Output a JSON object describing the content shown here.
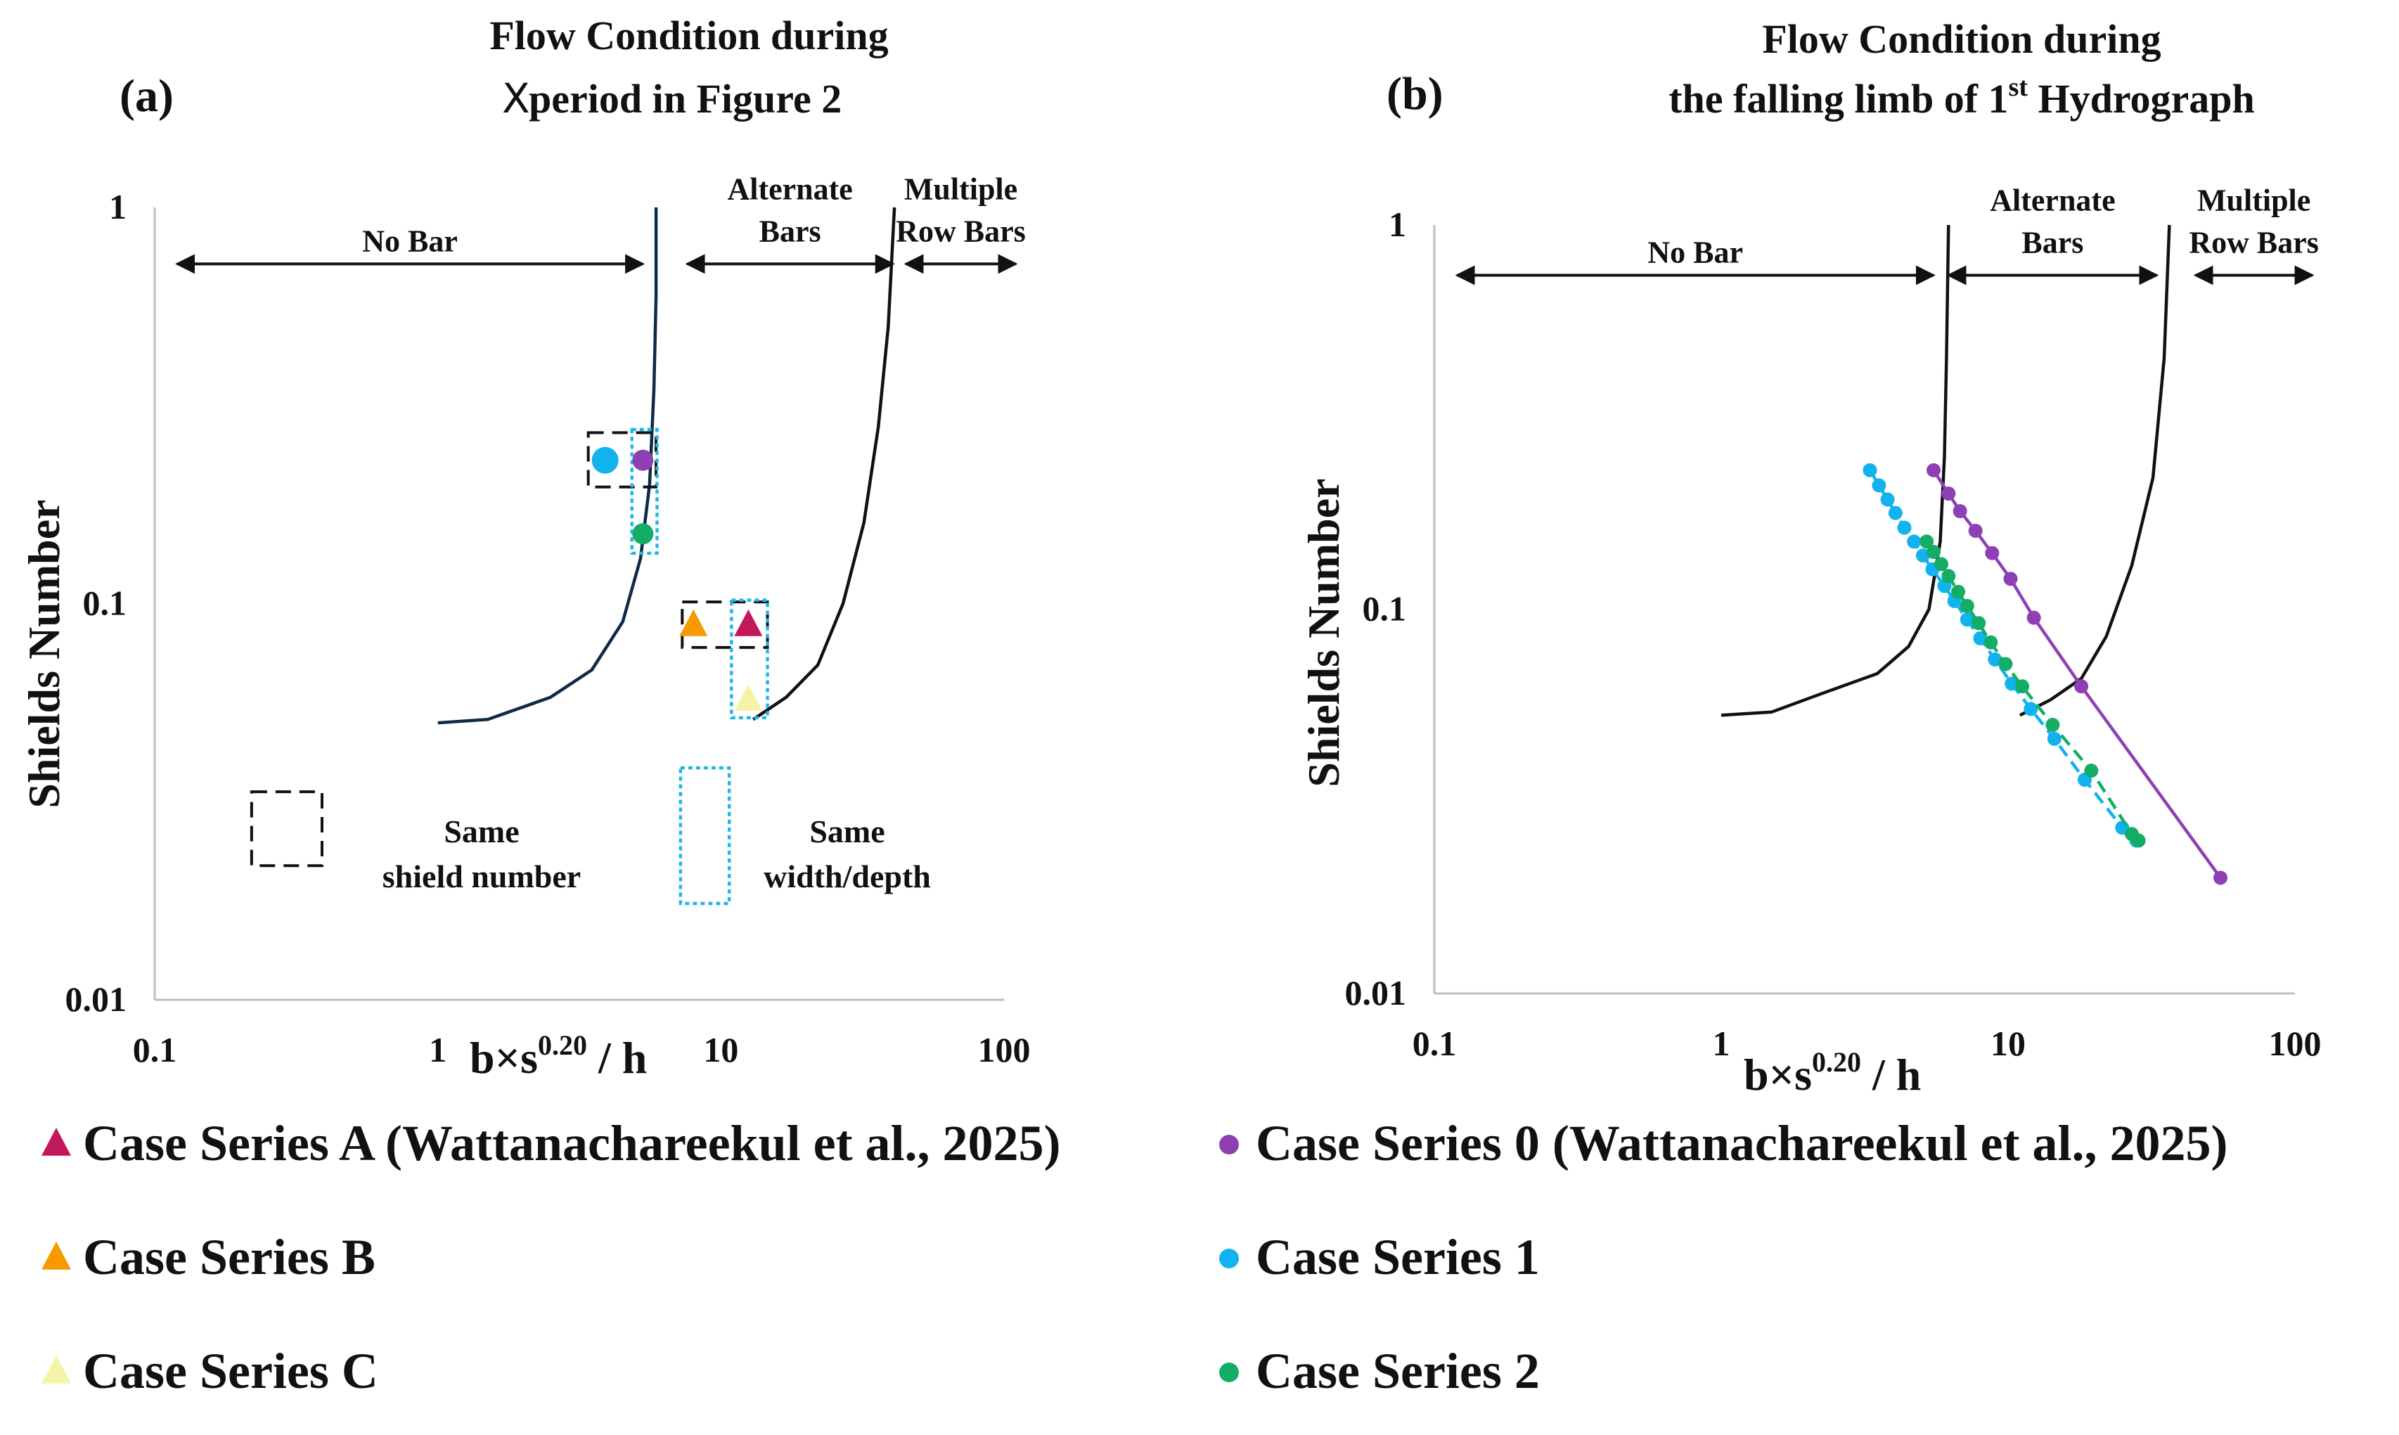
{
  "colors": {
    "series_a": "#c2185b",
    "series_b": "#f59a00",
    "series_c": "#f7f3a6",
    "series_0": "#8e3fb3",
    "series_1": "#12b2ee",
    "series_2": "#14ad66",
    "boundary_a": "#0e2a47",
    "boundary_b": "#111111",
    "axis": "#bfbfbf",
    "box_dashed": "#111111",
    "box_dotted": "#20b8e6"
  },
  "legend": [
    {
      "marker": "triangle",
      "color_key": "series_a",
      "label": "Case Series A (Wattanachareekul et al., 2025)"
    },
    {
      "marker": "triangle",
      "color_key": "series_b",
      "label": "Case Series B"
    },
    {
      "marker": "triangle",
      "color_key": "series_c",
      "label": "Case Series C"
    },
    {
      "marker": "circle",
      "color_key": "series_0",
      "label": "Case Series 0 (Wattanachareekul et al., 2025)"
    },
    {
      "marker": "circle",
      "color_key": "series_1",
      "label": "Case  Series 1"
    },
    {
      "marker": "circle",
      "color_key": "series_2",
      "label": "Case  Series 2"
    }
  ],
  "chart_data": [
    {
      "type": "scatter",
      "panel_label": "(a)",
      "title": "Flow Condition during",
      "title_line2": "period in Figure 2",
      "title_symbol": "X",
      "xlabel": "b×s",
      "xlabel_sup": "0.20",
      "xlabel_tail": " / h",
      "ylabel": "Shields Number",
      "xscale": "log",
      "yscale": "log",
      "xlim": [
        0.1,
        100
      ],
      "ylim": [
        0.01,
        1
      ],
      "xticks": [
        {
          "v": 0.1,
          "t": "0.1"
        },
        {
          "v": 1,
          "t": "1"
        },
        {
          "v": 10,
          "t": "10"
        },
        {
          "v": 100,
          "t": "100"
        }
      ],
      "yticks": [
        {
          "v": 0.01,
          "t": "0.01"
        },
        {
          "v": 0.1,
          "t": "0.1"
        },
        {
          "v": 1,
          "t": "1"
        }
      ],
      "regions": [
        {
          "label": "No Bar",
          "from": 0.12,
          "to": 5.3,
          "y": 0.72
        },
        {
          "label": "Alternate",
          "label2": "Bars",
          "from": 7.6,
          "to": 40.5,
          "y": 0.72
        },
        {
          "label": "Multiple",
          "label2": "Row Bars",
          "from": 45,
          "to": 110,
          "y": 0.72
        }
      ],
      "boundaries": [
        {
          "color_key": "boundary_a",
          "points": [
            [
              1.0,
              0.05
            ],
            [
              1.5,
              0.051
            ],
            [
              2.5,
              0.058
            ],
            [
              3.5,
              0.068
            ],
            [
              4.5,
              0.09
            ],
            [
              5.2,
              0.13
            ],
            [
              5.6,
              0.2
            ],
            [
              5.8,
              0.35
            ],
            [
              5.9,
              0.6
            ],
            [
              5.9,
              1.0
            ]
          ]
        },
        {
          "color_key": "boundary_b",
          "points": [
            [
              13,
              0.051
            ],
            [
              17,
              0.058
            ],
            [
              22,
              0.07
            ],
            [
              27,
              0.1
            ],
            [
              32,
              0.16
            ],
            [
              36,
              0.28
            ],
            [
              39,
              0.5
            ],
            [
              41,
              1.0
            ]
          ]
        }
      ],
      "series": [
        {
          "name": "Case Series A",
          "marker": "triangle",
          "color_key": "series_a",
          "x": [
            12.5
          ],
          "y": [
            0.088
          ]
        },
        {
          "name": "Case Series B",
          "marker": "triangle",
          "color_key": "series_b",
          "x": [
            8.0
          ],
          "y": [
            0.088
          ]
        },
        {
          "name": "Case Series C",
          "marker": "triangle",
          "color_key": "series_c",
          "x": [
            12.5
          ],
          "y": [
            0.057
          ]
        },
        {
          "name": "Case Series 0",
          "marker": "circle",
          "color_key": "series_0",
          "x": [
            5.3
          ],
          "y": [
            0.23
          ]
        },
        {
          "name": "Case Series 1",
          "marker": "circle",
          "color_key": "series_1",
          "x": [
            3.9
          ],
          "y": [
            0.23
          ]
        },
        {
          "name": "Case Series 2",
          "marker": "circle",
          "color_key": "series_2",
          "x": [
            5.3
          ],
          "y": [
            0.15
          ]
        }
      ],
      "boxes": [
        {
          "style": "dashed",
          "x": [
            3.4,
            5.9
          ],
          "y": [
            0.197,
            0.27
          ]
        },
        {
          "style": "dotted",
          "x": [
            4.85,
            5.95
          ],
          "y": [
            0.134,
            0.275
          ]
        },
        {
          "style": "dashed",
          "x": [
            7.3,
            14.6
          ],
          "y": [
            0.0775,
            0.101
          ]
        },
        {
          "style": "dotted",
          "x": [
            10.9,
            14.6
          ],
          "y": [
            0.0515,
            0.102
          ]
        }
      ],
      "box_legend": [
        {
          "style": "dashed",
          "label": "Same",
          "label2": "shield number",
          "x": [
            0.22,
            0.39
          ],
          "y": [
            0.0218,
            0.0335
          ]
        },
        {
          "style": "dotted",
          "label": "Same",
          "label2": "width/depth",
          "x": [
            7.2,
            10.7
          ],
          "y": [
            0.0175,
            0.0385
          ]
        }
      ]
    },
    {
      "type": "line",
      "panel_label": "(b)",
      "title": "Flow Condition during",
      "title_line2": "the falling limb of 1",
      "title_sup": "st",
      "title_tail": " Hydrograph",
      "xlabel": "b×s",
      "xlabel_sup": "0.20",
      "xlabel_tail": " / h",
      "ylabel": "Shields Number",
      "xscale": "log",
      "yscale": "log",
      "xlim": [
        0.1,
        100
      ],
      "ylim": [
        0.01,
        1
      ],
      "xticks": [
        {
          "v": 0.1,
          "t": "0.1"
        },
        {
          "v": 1,
          "t": "1"
        },
        {
          "v": 10,
          "t": "10"
        },
        {
          "v": 100,
          "t": "100"
        }
      ],
      "yticks": [
        {
          "v": 0.01,
          "t": "0.01"
        },
        {
          "v": 0.1,
          "t": "0.1"
        },
        {
          "v": 1,
          "t": "1"
        }
      ],
      "regions": [
        {
          "label": "No Bar",
          "from": 0.12,
          "to": 5.5,
          "y": 0.74
        },
        {
          "label": "Alternate",
          "label2": "Bars",
          "from": 6.2,
          "to": 33,
          "y": 0.74
        },
        {
          "label": "Multiple",
          "label2": "Row Bars",
          "from": 45,
          "to": 115,
          "y": 0.74
        }
      ],
      "boundaries": [
        {
          "color_key": "boundary_b",
          "points": [
            [
              1.0,
              0.053
            ],
            [
              1.5,
              0.054
            ],
            [
              2.2,
              0.06
            ],
            [
              3.5,
              0.068
            ],
            [
              4.5,
              0.08
            ],
            [
              5.3,
              0.1
            ],
            [
              5.8,
              0.15
            ],
            [
              6.0,
              0.25
            ],
            [
              6.1,
              0.45
            ],
            [
              6.2,
              1.0
            ]
          ]
        },
        {
          "color_key": "boundary_b",
          "points": [
            [
              11,
              0.053
            ],
            [
              14,
              0.058
            ],
            [
              18,
              0.066
            ],
            [
              22,
              0.085
            ],
            [
              27,
              0.13
            ],
            [
              32,
              0.22
            ],
            [
              35,
              0.45
            ],
            [
              36.5,
              1.0
            ]
          ]
        }
      ],
      "series": [
        {
          "name": "Case Series 0",
          "marker": "circle",
          "color_key": "series_0",
          "dashed": false,
          "x": [
            5.5,
            6.2,
            6.8,
            7.7,
            8.8,
            10.2,
            12.3,
            18.0,
            55.0
          ],
          "y": [
            0.23,
            0.2,
            0.18,
            0.16,
            0.14,
            0.12,
            0.095,
            0.063,
            0.02
          ]
        },
        {
          "name": "Case Series 1",
          "marker": "circle",
          "color_key": "series_1",
          "dashed": true,
          "x": [
            3.3,
            3.55,
            3.8,
            4.05,
            4.35,
            4.7,
            5.05,
            5.45,
            6.0,
            6.5,
            7.2,
            8.0,
            9.0,
            10.3,
            12.0,
            14.5,
            18.5,
            25.0,
            28.0
          ],
          "y": [
            0.23,
            0.21,
            0.193,
            0.178,
            0.163,
            0.15,
            0.138,
            0.127,
            0.115,
            0.105,
            0.094,
            0.084,
            0.074,
            0.064,
            0.055,
            0.046,
            0.036,
            0.027,
            0.025
          ]
        },
        {
          "name": "Case Series 2",
          "marker": "circle",
          "color_key": "series_2",
          "dashed": true,
          "x": [
            5.2,
            5.5,
            5.85,
            6.2,
            6.7,
            7.2,
            7.9,
            8.7,
            9.8,
            11.2,
            14.3,
            19.5,
            27.0,
            28.5
          ],
          "y": [
            0.15,
            0.141,
            0.131,
            0.122,
            0.111,
            0.102,
            0.092,
            0.082,
            0.072,
            0.063,
            0.05,
            0.038,
            0.026,
            0.025
          ]
        }
      ]
    }
  ]
}
